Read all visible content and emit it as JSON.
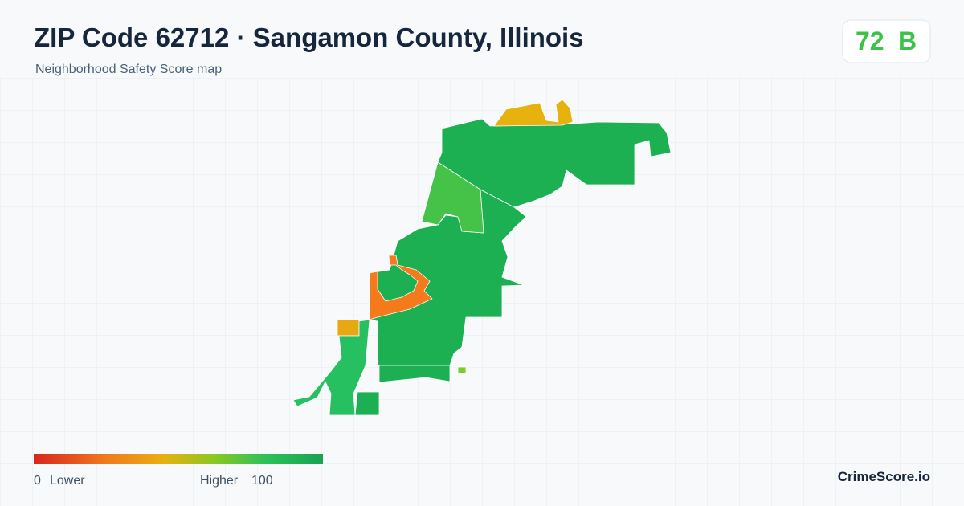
{
  "header": {
    "title": "ZIP Code 62712 · Sangamon County, Illinois",
    "subtitle": "Neighborhood Safety Score map"
  },
  "score": {
    "value": "72",
    "grade": "B"
  },
  "legend": {
    "min": "0",
    "low_label": "Lower",
    "high_label": "Higher",
    "max": "100"
  },
  "brand": "CrimeScore.io"
}
